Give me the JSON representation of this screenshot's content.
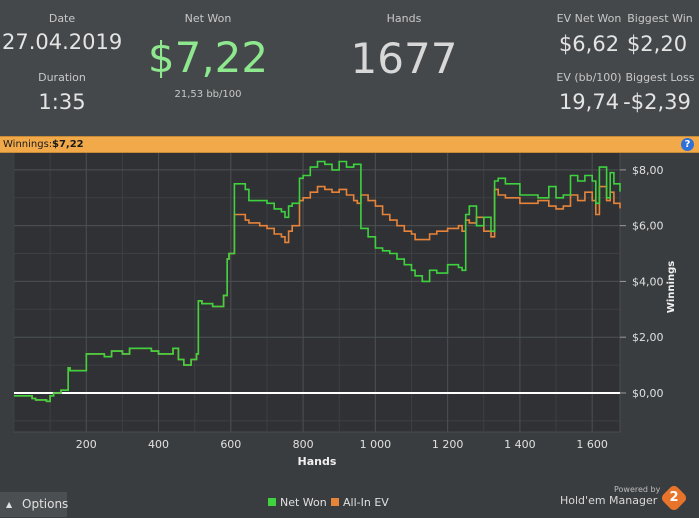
{
  "stats": {
    "date_label": "Date",
    "date_value": "27.04.2019",
    "duration_label": "Duration",
    "duration_value": "1:35",
    "net_won_label": "Net Won",
    "net_won_value": "$7,22",
    "bb100_value": "21,53 bb/100",
    "hands_label": "Hands",
    "hands_value": "1677",
    "ev_net_won_label": "EV Net Won",
    "ev_net_won_value": "$6,62",
    "biggest_win_label": "Biggest Win",
    "biggest_win_value": "$2,20",
    "ev_bb100_label": "EV (bb/100)",
    "ev_bb100_value": "19,74",
    "biggest_loss_label": "Biggest Loss",
    "biggest_loss_value": "-$2,39"
  },
  "winnings_bar": {
    "label": "Winnings:",
    "value": "$7,22",
    "help_icon": "?"
  },
  "colors": {
    "net_won": "#3fd23f",
    "all_in_ev": "#e8843a",
    "accent_bar": "#f2a94a",
    "net_won_text": "#8ee88e"
  },
  "chart_data": {
    "type": "line",
    "xlabel": "Hands",
    "ylabel": "Winnings",
    "xlim": [
      0,
      1677
    ],
    "ylim": [
      -1.4,
      9.0
    ],
    "x_ticks": [
      200,
      400,
      600,
      800,
      1000,
      1200,
      1400,
      1600
    ],
    "x_tick_labels": [
      "200",
      "400",
      "600",
      "800",
      "1 000",
      "1 200",
      "1 400",
      "1 600"
    ],
    "y_ticks": [
      0,
      2,
      4,
      6,
      8
    ],
    "y_tick_labels": [
      "$0,00",
      "$2,00",
      "$4,00",
      "$6,00",
      "$8,00"
    ],
    "grid": true,
    "legend_position": "bottom",
    "series": [
      {
        "name": "Net Won",
        "color": "#3fd23f",
        "x": [
          0,
          50,
          60,
          90,
          100,
          110,
          130,
          150,
          155,
          200,
          250,
          270,
          300,
          320,
          380,
          400,
          440,
          455,
          470,
          490,
          505,
          510,
          520,
          550,
          570,
          580,
          590,
          595,
          600,
          610,
          640,
          650,
          680,
          700,
          720,
          740,
          750,
          760,
          770,
          790,
          800,
          820,
          840,
          860,
          880,
          900,
          920,
          940,
          950,
          960,
          980,
          1000,
          1020,
          1040,
          1060,
          1080,
          1100,
          1110,
          1130,
          1150,
          1170,
          1200,
          1230,
          1240,
          1250,
          1260,
          1280,
          1300,
          1320,
          1330,
          1340,
          1360,
          1400,
          1450,
          1480,
          1500,
          1520,
          1540,
          1560,
          1580,
          1600,
          1610,
          1620,
          1640,
          1650,
          1660,
          1677
        ],
        "values": [
          -0.1,
          -0.2,
          -0.25,
          -0.3,
          -0.1,
          0.0,
          0.1,
          0.9,
          0.8,
          1.4,
          1.3,
          1.5,
          1.4,
          1.6,
          1.5,
          1.4,
          1.6,
          1.2,
          1.0,
          1.2,
          1.4,
          3.3,
          3.2,
          3.1,
          3.1,
          3.5,
          4.8,
          5.0,
          5.0,
          7.5,
          7.3,
          6.9,
          6.9,
          6.8,
          6.6,
          6.5,
          6.3,
          6.7,
          6.8,
          7.7,
          7.8,
          8.1,
          8.3,
          8.2,
          8.0,
          8.3,
          8.1,
          8.2,
          8.2,
          5.9,
          5.6,
          5.2,
          5.1,
          5.0,
          4.8,
          4.6,
          4.4,
          4.2,
          4.0,
          4.4,
          4.3,
          4.6,
          4.5,
          4.4,
          6.4,
          6.7,
          6.0,
          6.3,
          5.8,
          7.6,
          7.7,
          7.5,
          7.1,
          7.0,
          7.4,
          7.0,
          7.1,
          7.8,
          7.6,
          7.8,
          7.6,
          6.8,
          8.1,
          7.0,
          7.9,
          7.5,
          7.22
        ]
      },
      {
        "name": "All-In EV",
        "color": "#e8843a",
        "x": [
          0,
          50,
          60,
          90,
          100,
          110,
          130,
          150,
          155,
          200,
          250,
          270,
          300,
          320,
          380,
          400,
          440,
          455,
          470,
          490,
          505,
          510,
          520,
          550,
          570,
          580,
          590,
          595,
          600,
          610,
          640,
          650,
          680,
          700,
          720,
          740,
          750,
          760,
          770,
          790,
          800,
          820,
          840,
          860,
          880,
          900,
          920,
          940,
          950,
          960,
          980,
          1000,
          1020,
          1040,
          1060,
          1080,
          1100,
          1110,
          1130,
          1150,
          1170,
          1200,
          1230,
          1240,
          1250,
          1260,
          1280,
          1300,
          1320,
          1330,
          1340,
          1360,
          1400,
          1450,
          1480,
          1500,
          1520,
          1540,
          1560,
          1580,
          1600,
          1610,
          1620,
          1640,
          1650,
          1660,
          1677
        ],
        "values": [
          -0.1,
          -0.2,
          -0.25,
          -0.3,
          -0.1,
          0.0,
          0.1,
          0.9,
          0.8,
          1.4,
          1.3,
          1.5,
          1.4,
          1.6,
          1.5,
          1.4,
          1.6,
          1.2,
          1.0,
          1.2,
          1.4,
          3.3,
          3.2,
          3.1,
          3.1,
          3.5,
          4.8,
          5.0,
          5.0,
          6.4,
          6.2,
          6.1,
          6.0,
          5.9,
          5.7,
          5.6,
          5.4,
          5.8,
          6.0,
          6.9,
          7.0,
          7.2,
          7.4,
          7.3,
          7.2,
          7.3,
          7.1,
          6.9,
          6.8,
          7.1,
          6.9,
          6.7,
          6.4,
          6.2,
          6.0,
          5.8,
          5.7,
          5.5,
          5.5,
          5.7,
          5.8,
          5.9,
          6.0,
          5.8,
          6.2,
          6.1,
          6.3,
          5.8,
          5.6,
          7.3,
          7.1,
          7.0,
          6.8,
          6.9,
          6.7,
          6.6,
          6.7,
          7.1,
          6.9,
          7.2,
          6.9,
          6.4,
          7.4,
          6.9,
          7.2,
          6.8,
          6.62
        ]
      }
    ]
  },
  "footer": {
    "options_label": "Options",
    "options_icon": "caret-up-icon",
    "legend_net_won": "Net Won",
    "legend_all_in_ev": "All-In EV",
    "powered_by": "Powered by",
    "brand": "Hold'em Manager",
    "brand_badge": "2"
  }
}
